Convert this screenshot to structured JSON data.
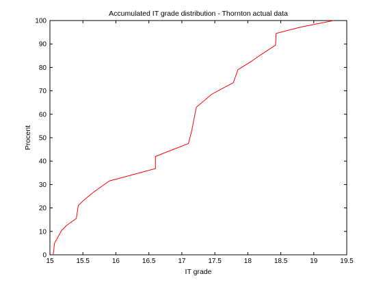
{
  "chart_data": {
    "type": "line",
    "title": "Accumulated IT grade distribution - Thornton actual data",
    "xlabel": "IT grade",
    "ylabel": "Procent",
    "xlim": [
      15,
      19.5
    ],
    "ylim": [
      0,
      100
    ],
    "xticks": [
      "15",
      "15.5",
      "16",
      "16.5",
      "17",
      "17.5",
      "18",
      "18.5",
      "19",
      "19.5"
    ],
    "yticks": [
      "0",
      "10",
      "20",
      "30",
      "40",
      "50",
      "60",
      "70",
      "80",
      "90",
      "100"
    ],
    "grid": false,
    "line_color": "#ff0000",
    "series": [
      {
        "x": [
          15.05,
          15.07,
          15.18,
          15.25,
          15.4,
          15.43,
          15.5,
          15.65,
          15.9,
          16.6,
          16.6,
          17.1,
          17.15,
          17.22,
          17.45,
          17.78,
          17.85,
          18.05,
          18.15,
          18.42,
          18.43,
          18.8,
          19.3
        ],
        "y": [
          0,
          5,
          10.5,
          12.5,
          15.5,
          21,
          23,
          26.5,
          31.5,
          36.8,
          42,
          47.5,
          53,
          63,
          68.5,
          73.5,
          79,
          82.5,
          84.5,
          89.5,
          94.5,
          97.2,
          100
        ]
      }
    ]
  }
}
